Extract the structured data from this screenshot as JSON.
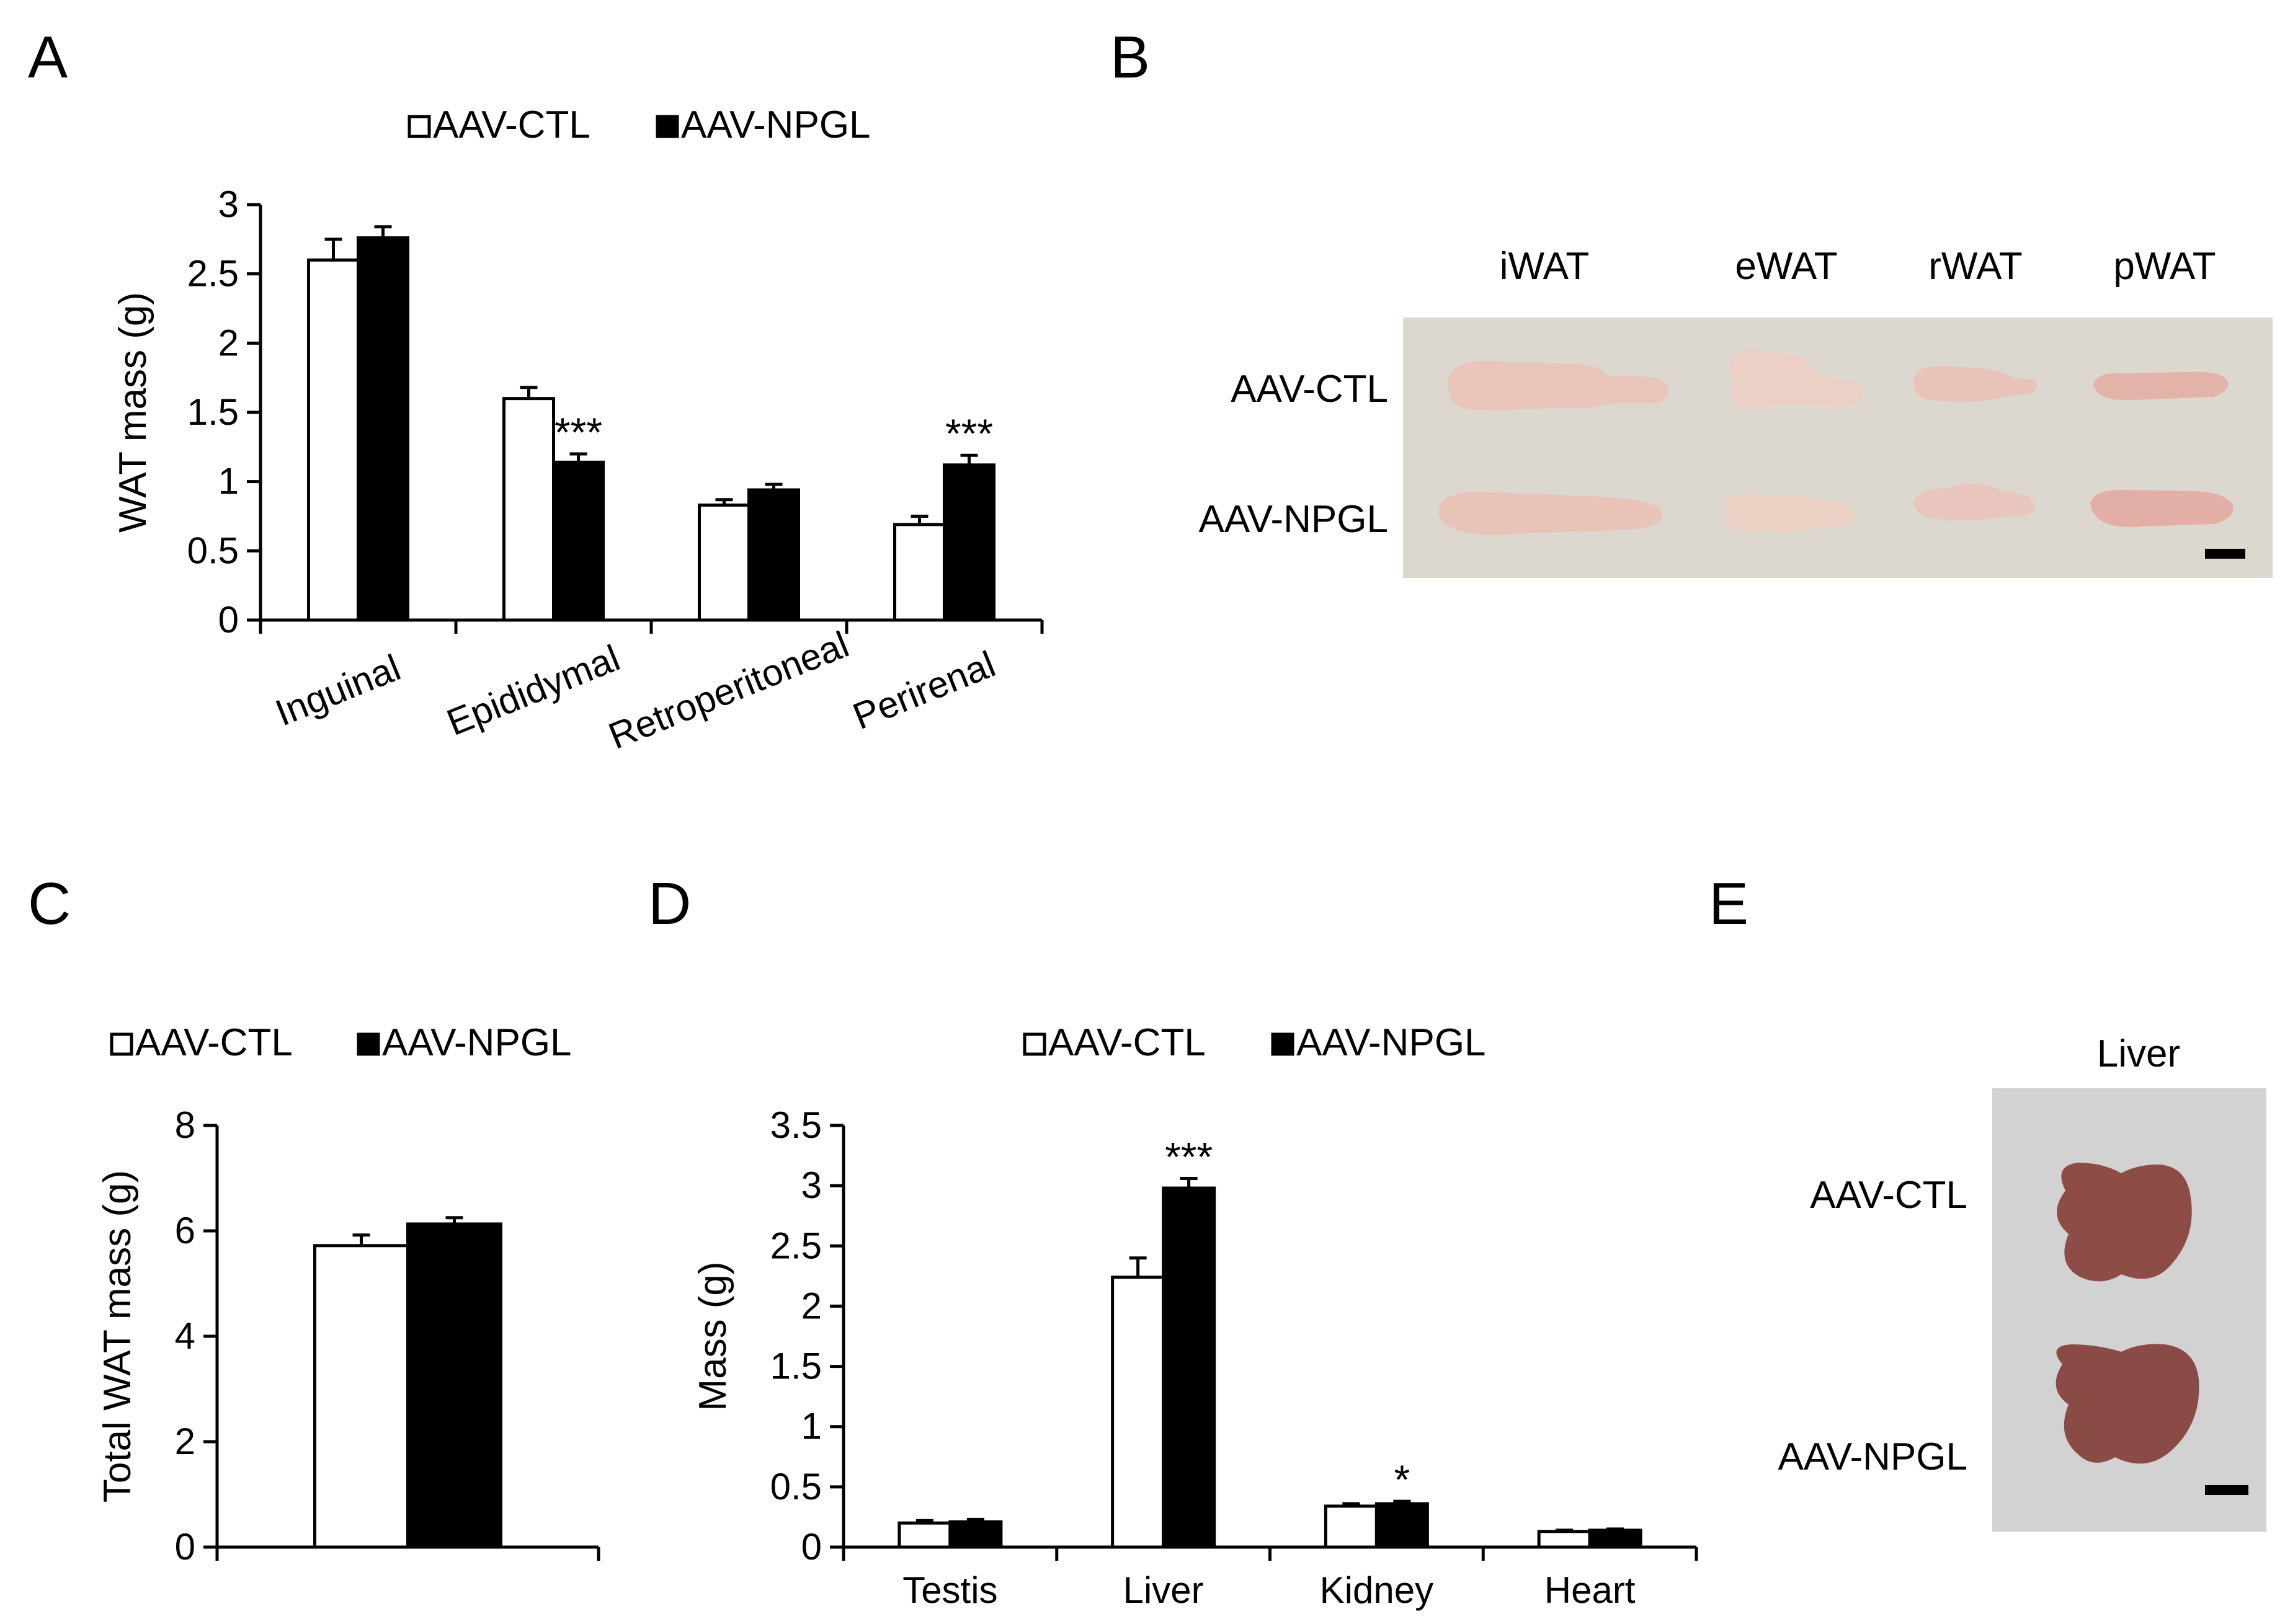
{
  "panel_labels": {
    "a": "A",
    "b": "B",
    "c": "C",
    "d": "D",
    "e": "E"
  },
  "legend": {
    "ctl": "AAV-CTL",
    "npgl": "AAV-NPGL"
  },
  "colors": {
    "ctl": "#ffffff",
    "npgl": "#000000",
    "photo_bg_b": "#d9d5cd",
    "photo_bg_e": "#cfcfcf",
    "tissue_wat": "#e8c2b8",
    "tissue_liver": "#8a4a45"
  },
  "chart_data": [
    {
      "panel": "A",
      "type": "bar",
      "ylabel": "WAT mass (g)",
      "ylim": [
        0,
        3
      ],
      "yticks": [
        "0",
        "0.5",
        "1",
        "1.5",
        "2",
        "2.5",
        "3"
      ],
      "categories": [
        "Inguinal",
        "Epididymal",
        "Retroperitoneal",
        "Perirenal"
      ],
      "series": [
        {
          "name": "AAV-CTL",
          "values": [
            2.6,
            1.6,
            0.83,
            0.69
          ],
          "errors": [
            0.15,
            0.08,
            0.04,
            0.06
          ]
        },
        {
          "name": "AAV-NPGL",
          "values": [
            2.76,
            1.14,
            0.94,
            1.12
          ],
          "errors": [
            0.08,
            0.06,
            0.04,
            0.07
          ]
        }
      ],
      "annotations": [
        {
          "category": "Epididymal",
          "text": "***"
        },
        {
          "category": "Perirenal",
          "text": "***"
        }
      ]
    },
    {
      "panel": "C",
      "type": "bar",
      "ylabel": "Total WAT mass (g)",
      "ylim": [
        0,
        8
      ],
      "yticks": [
        "0",
        "2",
        "4",
        "6",
        "8"
      ],
      "categories": [
        ""
      ],
      "series": [
        {
          "name": "AAV-CTL",
          "values": [
            5.72
          ],
          "errors": [
            0.2
          ]
        },
        {
          "name": "AAV-NPGL",
          "values": [
            6.13
          ],
          "errors": [
            0.12
          ]
        }
      ],
      "annotations": []
    },
    {
      "panel": "D",
      "type": "bar",
      "ylabel": "Mass (g)",
      "ylim": [
        0,
        3.5
      ],
      "yticks": [
        "0",
        "0.5",
        "1",
        "1.5",
        "2",
        "2.5",
        "3",
        "3.5"
      ],
      "categories": [
        "Testis",
        "Liver",
        "Kidney",
        "Heart"
      ],
      "series": [
        {
          "name": "AAV-CTL",
          "values": [
            0.2,
            2.24,
            0.34,
            0.13
          ],
          "errors": [
            0.02,
            0.16,
            0.02,
            0.01
          ]
        },
        {
          "name": "AAV-NPGL",
          "values": [
            0.21,
            2.98,
            0.36,
            0.14
          ],
          "errors": [
            0.02,
            0.08,
            0.02,
            0.01
          ]
        }
      ],
      "annotations": [
        {
          "category": "Liver",
          "text": "***"
        },
        {
          "category": "Kidney",
          "text": "*"
        }
      ]
    }
  ],
  "photo_b": {
    "columns": [
      "iWAT",
      "eWAT",
      "rWAT",
      "pWAT"
    ],
    "rows": [
      "AAV-CTL",
      "AAV-NPGL"
    ]
  },
  "photo_e": {
    "title": "Liver",
    "rows": [
      "AAV-CTL",
      "AAV-NPGL"
    ]
  }
}
